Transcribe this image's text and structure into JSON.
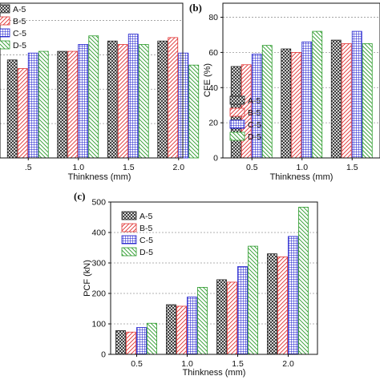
{
  "chart_data": [
    {
      "panel": "(a)",
      "panel_label_visible": false,
      "type": "bar",
      "categories": [
        "0.5",
        "1.0",
        "1.5",
        "2.0"
      ],
      "category_tick_labels": [
        ".5",
        "1.0",
        "1.5",
        "2.0"
      ],
      "xlabel": "Thinkness (mm)",
      "ylabel": "",
      "y_ticks": [],
      "ylim": [
        0,
        90
      ],
      "grid": "dashed horizontal",
      "legend": "top-left",
      "series": [
        {
          "name": "A-5",
          "values": [
            57,
            62,
            68,
            68
          ]
        },
        {
          "name": "B-5",
          "values": [
            52,
            62,
            66,
            70
          ]
        },
        {
          "name": "C-5",
          "values": [
            61,
            66,
            72,
            61
          ]
        },
        {
          "name": "D-5",
          "values": [
            62,
            71,
            66,
            54
          ]
        }
      ]
    },
    {
      "panel": "(b)",
      "type": "bar",
      "categories": [
        "0.5",
        "1.0",
        "1.5"
      ],
      "category_tick_labels": [
        "0.5",
        "1.0",
        "1.5"
      ],
      "xlabel": "Thinkness (mm)",
      "ylabel": "CFE (%)",
      "y_ticks": [
        0,
        20,
        40,
        60,
        80
      ],
      "ylim": [
        0,
        88
      ],
      "grid": "dashed horizontal",
      "legend": "top-left",
      "series": [
        {
          "name": "A-5",
          "values": [
            52,
            62,
            67
          ]
        },
        {
          "name": "B-5",
          "values": [
            53,
            60,
            65
          ]
        },
        {
          "name": "C-5",
          "values": [
            59,
            66,
            72
          ]
        },
        {
          "name": "D-5",
          "values": [
            64,
            72,
            65
          ]
        }
      ]
    },
    {
      "panel": "(c)",
      "type": "bar",
      "categories": [
        "0.5",
        "1.0",
        "1.5",
        "2.0"
      ],
      "category_tick_labels": [
        "0.5",
        "1.0",
        "1.5",
        "2.0"
      ],
      "xlabel": "Thinkness (mm)",
      "ylabel": "PCF (kN)",
      "y_ticks": [
        0,
        100,
        200,
        300,
        400,
        500
      ],
      "ylim": [
        0,
        500
      ],
      "grid": "dashed horizontal",
      "legend": "top-left",
      "series": [
        {
          "name": "A-5",
          "values": [
            78,
            163,
            245,
            330
          ]
        },
        {
          "name": "B-5",
          "values": [
            73,
            158,
            237,
            320
          ]
        },
        {
          "name": "C-5",
          "values": [
            88,
            188,
            288,
            387
          ]
        },
        {
          "name": "D-5",
          "values": [
            102,
            220,
            355,
            483
          ]
        }
      ]
    }
  ],
  "series_style": {
    "A-5": {
      "pattern": "crosshatch",
      "color": "#222222"
    },
    "B-5": {
      "pattern": "diagonal",
      "color": "#e03030"
    },
    "C-5": {
      "pattern": "grid",
      "color": "#1a1acc"
    },
    "D-5": {
      "pattern": "diagonal",
      "color": "#2a9a2a"
    }
  }
}
